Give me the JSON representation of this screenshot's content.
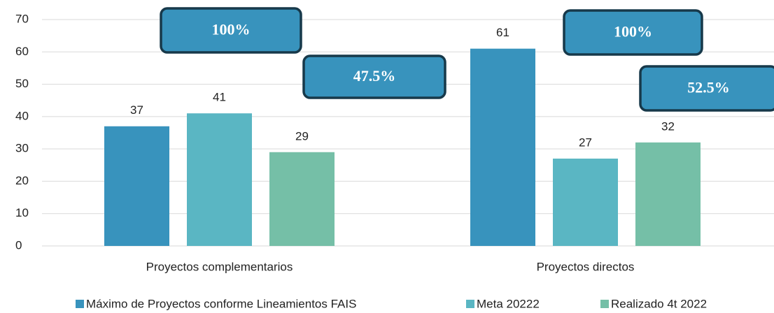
{
  "chart_data": {
    "type": "bar",
    "categories": [
      "Proyectos complementarios",
      "Proyectos directos"
    ],
    "series": [
      {
        "name": "Máximo de Proyectos conforme Lineamientos FAIS",
        "color": "#3893bd",
        "values": [
          37,
          61
        ]
      },
      {
        "name": "Meta 20222",
        "color": "#5ab6c3",
        "values": [
          41,
          27
        ]
      },
      {
        "name": "Realizado 4t 2022",
        "color": "#75bfa7",
        "values": [
          29,
          32
        ]
      }
    ],
    "ylim": [
      0,
      70
    ],
    "yticks": [
      0,
      10,
      20,
      30,
      40,
      50,
      60,
      70
    ],
    "grid": true,
    "annotations": [
      "100%",
      "47.5%",
      "100%",
      "52.5%"
    ],
    "legend": "bottom"
  }
}
